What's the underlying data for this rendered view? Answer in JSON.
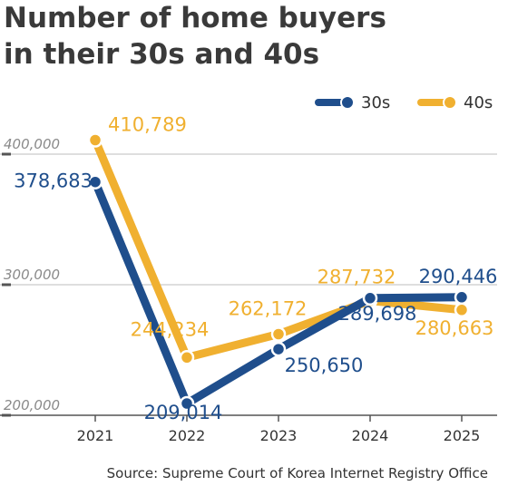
{
  "chart_data": {
    "type": "line",
    "title_lines": [
      "Number of home buyers",
      "in their 30s and 40s"
    ],
    "categories": [
      "2021",
      "2022",
      "2023",
      "2024",
      "2025"
    ],
    "series": [
      {
        "name": "30s",
        "color": "#1f4e8c",
        "values": [
          378683,
          209014,
          250650,
          289698,
          290446
        ],
        "labels": [
          "378,683",
          "209,014",
          "250,650",
          "289,698",
          "290,446"
        ]
      },
      {
        "name": "40s",
        "color": "#f0b030",
        "values": [
          410789,
          244234,
          262172,
          287732,
          280663
        ],
        "labels": [
          "410,789",
          "244,234",
          "262,172",
          "287,732",
          "280,663"
        ]
      }
    ],
    "yticks": [
      200000,
      300000,
      400000
    ],
    "ytick_labels": [
      "200,000",
      "300,000",
      "400,000"
    ],
    "ylim": [
      200000,
      420000
    ],
    "grid": true,
    "legend_position": "top-right",
    "xlabel": "",
    "ylabel": ""
  },
  "source": "Source: Supreme Court of Korea Internet Registry Office"
}
